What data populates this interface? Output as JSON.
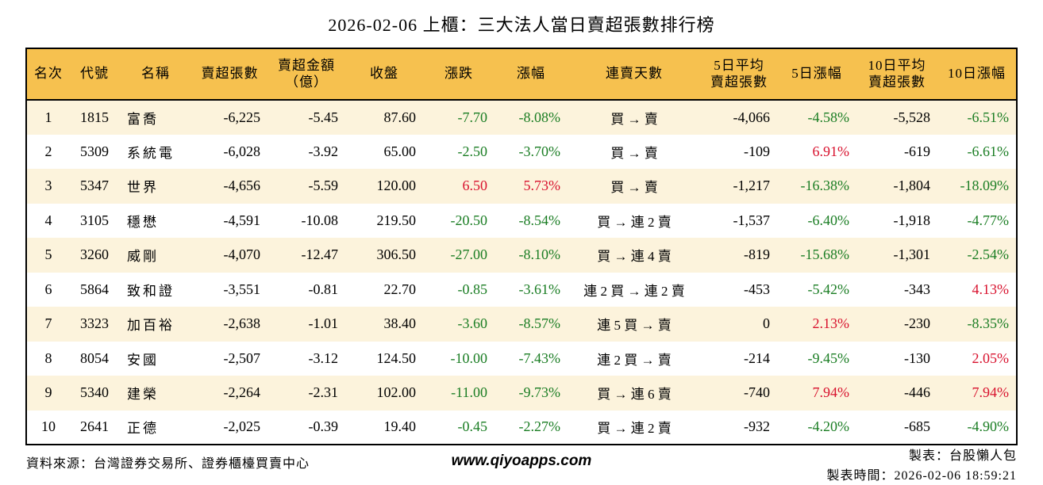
{
  "title": "2026-02-06 上櫃：三大法人當日賣超張數排行榜",
  "colors": {
    "header_bg": "#F6C14F",
    "row_odd_bg": "#FCF3DC",
    "row_even_bg": "#FFFFFF",
    "down_green": "#1A7D23",
    "up_red": "#D8122E",
    "border": "#000000"
  },
  "chart_data": {
    "type": "table",
    "title": "2026-02-06 上櫃：三大法人當日賣超張數排行榜",
    "columns": [
      {
        "key": "rank",
        "label": "名次"
      },
      {
        "key": "code",
        "label": "代號"
      },
      {
        "key": "name",
        "label": "名稱"
      },
      {
        "key": "net-sell-volume",
        "label": "賣超張數"
      },
      {
        "key": "net-sell-amount",
        "label": "賣超金額\n（億）"
      },
      {
        "key": "close",
        "label": "收盤"
      },
      {
        "key": "change",
        "label": "漲跌"
      },
      {
        "key": "change-pct",
        "label": "漲幅"
      },
      {
        "key": "streak",
        "label": "連賣天數"
      },
      {
        "key": "avg5-volume",
        "label": "5日平均\n賣超張數"
      },
      {
        "key": "pct5",
        "label": "5日漲幅"
      },
      {
        "key": "avg10-volume",
        "label": "10日平均\n賣超張數"
      },
      {
        "key": "pct10",
        "label": "10日漲幅"
      }
    ],
    "rows": [
      {
        "values": [
          "1",
          "1815",
          "富喬",
          "-6,225",
          "-5.45",
          "87.60",
          "-7.70",
          "-8.08%",
          "買 → 賣",
          "-4,066",
          "-4.58%",
          "-5,528",
          "-6.51%"
        ],
        "colors": [
          "",
          "",
          "",
          "",
          "",
          "",
          "g",
          "g",
          "",
          "",
          "g",
          "",
          "g"
        ]
      },
      {
        "values": [
          "2",
          "5309",
          "系統電",
          "-6,028",
          "-3.92",
          "65.00",
          "-2.50",
          "-3.70%",
          "買 → 賣",
          "-109",
          "6.91%",
          "-619",
          "-6.61%"
        ],
        "colors": [
          "",
          "",
          "",
          "",
          "",
          "",
          "g",
          "g",
          "",
          "",
          "r",
          "",
          "g"
        ]
      },
      {
        "values": [
          "3",
          "5347",
          "世界",
          "-4,656",
          "-5.59",
          "120.00",
          "6.50",
          "5.73%",
          "買 → 賣",
          "-1,217",
          "-16.38%",
          "-1,804",
          "-18.09%"
        ],
        "colors": [
          "",
          "",
          "",
          "",
          "",
          "",
          "r",
          "r",
          "",
          "",
          "g",
          "",
          "g"
        ]
      },
      {
        "values": [
          "4",
          "3105",
          "穩懋",
          "-4,591",
          "-10.08",
          "219.50",
          "-20.50",
          "-8.54%",
          "買 → 連 2 賣",
          "-1,537",
          "-6.40%",
          "-1,918",
          "-4.77%"
        ],
        "colors": [
          "",
          "",
          "",
          "",
          "",
          "",
          "g",
          "g",
          "",
          "",
          "g",
          "",
          "g"
        ]
      },
      {
        "values": [
          "5",
          "3260",
          "威剛",
          "-4,070",
          "-12.47",
          "306.50",
          "-27.00",
          "-8.10%",
          "買 → 連 4 賣",
          "-819",
          "-15.68%",
          "-1,301",
          "-2.54%"
        ],
        "colors": [
          "",
          "",
          "",
          "",
          "",
          "",
          "g",
          "g",
          "",
          "",
          "g",
          "",
          "g"
        ]
      },
      {
        "values": [
          "6",
          "5864",
          "致和證",
          "-3,551",
          "-0.81",
          "22.70",
          "-0.85",
          "-3.61%",
          "連 2 買 → 連 2 賣",
          "-453",
          "-5.42%",
          "-343",
          "4.13%"
        ],
        "colors": [
          "",
          "",
          "",
          "",
          "",
          "",
          "g",
          "g",
          "",
          "",
          "g",
          "",
          "r"
        ]
      },
      {
        "values": [
          "7",
          "3323",
          "加百裕",
          "-2,638",
          "-1.01",
          "38.40",
          "-3.60",
          "-8.57%",
          "連 5 買 → 賣",
          "0",
          "2.13%",
          "-230",
          "-8.35%"
        ],
        "colors": [
          "",
          "",
          "",
          "",
          "",
          "",
          "g",
          "g",
          "",
          "",
          "r",
          "",
          "g"
        ]
      },
      {
        "values": [
          "8",
          "8054",
          "安國",
          "-2,507",
          "-3.12",
          "124.50",
          "-10.00",
          "-7.43%",
          "連 2 買 → 賣",
          "-214",
          "-9.45%",
          "-130",
          "2.05%"
        ],
        "colors": [
          "",
          "",
          "",
          "",
          "",
          "",
          "g",
          "g",
          "",
          "",
          "g",
          "",
          "r"
        ]
      },
      {
        "values": [
          "9",
          "5340",
          "建榮",
          "-2,264",
          "-2.31",
          "102.00",
          "-11.00",
          "-9.73%",
          "買 → 連 6 賣",
          "-740",
          "7.94%",
          "-446",
          "7.94%"
        ],
        "colors": [
          "",
          "",
          "",
          "",
          "",
          "",
          "g",
          "g",
          "",
          "",
          "r",
          "",
          "r"
        ]
      },
      {
        "values": [
          "10",
          "2641",
          "正德",
          "-2,025",
          "-0.39",
          "19.40",
          "-0.45",
          "-2.27%",
          "買 → 連 2 賣",
          "-932",
          "-4.20%",
          "-685",
          "-4.90%"
        ],
        "colors": [
          "",
          "",
          "",
          "",
          "",
          "",
          "g",
          "g",
          "",
          "",
          "g",
          "",
          "g"
        ]
      }
    ]
  },
  "footer": {
    "source": "資料來源：台灣證券交易所、證券櫃檯買賣中心",
    "website": "www.qiyoapps.com",
    "creator": "製表：台股懶人包",
    "created": "製表時間：2026-02-06 18:59:21"
  }
}
